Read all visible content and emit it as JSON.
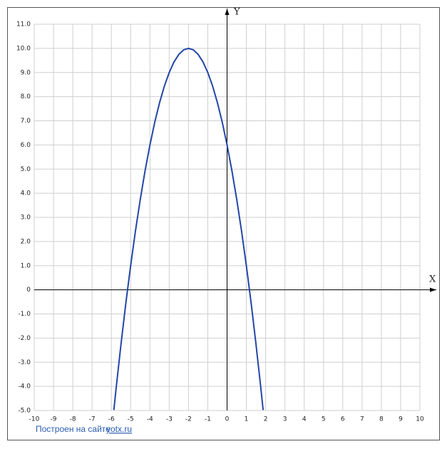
{
  "chart_data": {
    "type": "line",
    "xlabel": "X",
    "ylabel": "Y",
    "x": [
      -5.87,
      -5.75,
      -5.5,
      -5.25,
      -5,
      -4.75,
      -4.5,
      -4.25,
      -4,
      -3.75,
      -3.5,
      -3.25,
      -3,
      -2.75,
      -2.5,
      -2.25,
      -2,
      -1.75,
      -1.5,
      -1.25,
      -1,
      -0.75,
      -0.5,
      -0.25,
      0,
      0.25,
      0.5,
      0.75,
      1,
      1.25,
      1.5,
      1.75,
      1.87
    ],
    "values": [
      -4.98,
      -4.06,
      -2.25,
      -0.56,
      1,
      2.44,
      3.75,
      4.94,
      6,
      6.94,
      7.75,
      8.44,
      9,
      9.44,
      9.75,
      9.94,
      10,
      9.94,
      9.75,
      9.44,
      9,
      8.44,
      7.75,
      6.94,
      6,
      4.94,
      3.75,
      2.44,
      1,
      -0.56,
      -2.25,
      -4.06,
      -4.98
    ],
    "color": "#2346a8",
    "xlim": [
      -10,
      10
    ],
    "ylim": [
      -5,
      11
    ],
    "xticks": [
      -10,
      -9,
      -8,
      -7,
      -6,
      -5,
      -4,
      -3,
      -2,
      -1,
      0,
      1,
      2,
      3,
      4,
      5,
      6,
      7,
      8,
      9,
      10
    ],
    "yticks": [
      {
        "value": -5,
        "label": "-5.0"
      },
      {
        "value": -4,
        "label": "-4.0"
      },
      {
        "value": -3,
        "label": "-3.0"
      },
      {
        "value": -2,
        "label": "-2.0"
      },
      {
        "value": -1,
        "label": "-1.0"
      },
      0,
      {
        "value": 1,
        "label": "1.0"
      },
      {
        "value": 2,
        "label": "2.0"
      },
      {
        "value": 3,
        "label": "3.0"
      },
      {
        "value": 4,
        "label": "4.0"
      },
      {
        "value": 5,
        "label": "5.0"
      },
      {
        "value": 6,
        "label": "6.0"
      },
      {
        "value": 7,
        "label": "7.0"
      },
      {
        "value": 8,
        "label": "8.0"
      },
      {
        "value": 9,
        "label": "9.0"
      },
      {
        "value": 10,
        "label": "10.0"
      },
      {
        "value": 11,
        "label": "11.0"
      }
    ],
    "grid": true,
    "source_text": "Построен на сайте",
    "source_link": "yotx.ru"
  }
}
